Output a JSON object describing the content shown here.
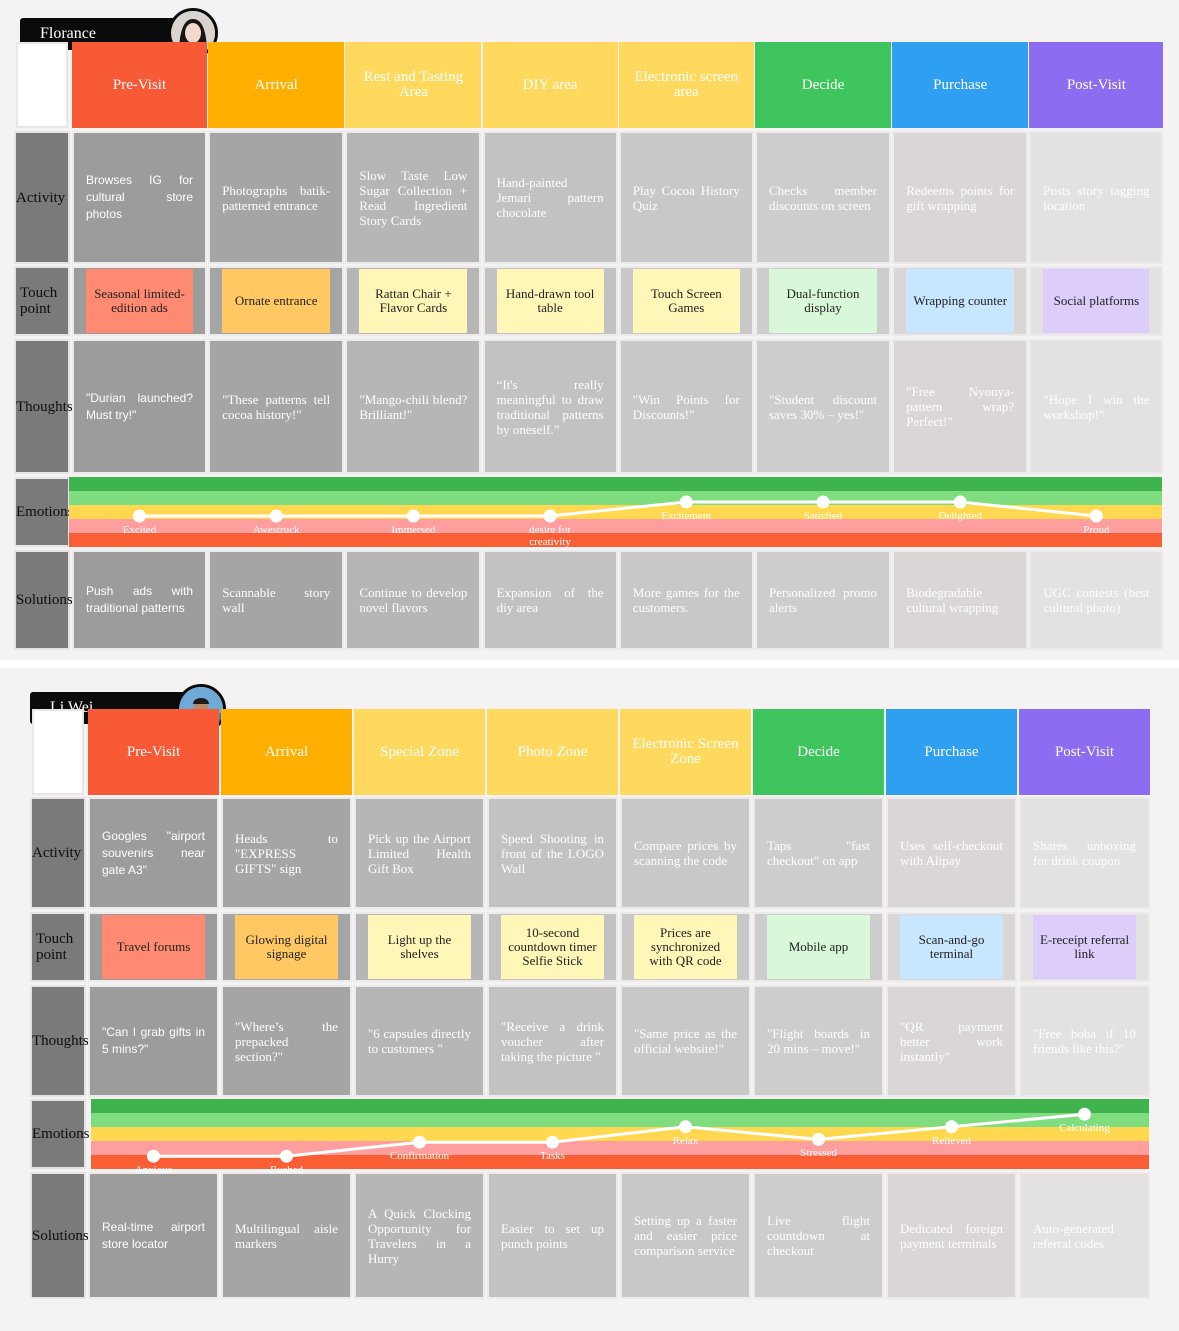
{
  "colors": {
    "pre_visit": "#f85a35",
    "arrival": "#ffaf00",
    "zone": "#ffd95e",
    "decide": "#3ec55d",
    "purchase": "#2f9ff2",
    "post_visit": "#8c6cf0",
    "grey_cells": [
      "#979797",
      "#a3a3a3",
      "#b4b4b4",
      "#c4c4c4",
      "#c9c9c9",
      "#cecece",
      "#dbd7d7",
      "#e4e2e2"
    ],
    "emotion_bands": [
      "#3fb44e",
      "#7fdd7f",
      "#ffd84f",
      "#ff9e9e",
      "#f95e35"
    ]
  },
  "journeys": [
    {
      "persona": "Florance",
      "row_labels": [
        "Activity",
        "Touch point",
        "Thoughts",
        "Emotions",
        "Solutions"
      ],
      "phases": [
        "Pre-Visit",
        "Arrival",
        "Rest and Tasting Area",
        "DIY area",
        "Electronic screen area",
        "Decide",
        "Purchase",
        "Post-Visit"
      ],
      "activities": [
        "Browses IG for cultural store photos",
        "Photographs batik-patterned entrance",
        "Slow Taste Low Sugar Collection + Read Ingredient Story Cards",
        "Hand-painted Jemari pattern chocolate",
        "Play Cocoa History Quiz",
        "Checks member discounts on screen",
        "Redeems points for gift wrapping",
        "Posts story tagging location"
      ],
      "touchpoints": [
        "Seasonal limited-edition ads",
        "Ornate entrance",
        "Rattan Chair + Flavor Cards",
        "Hand-drawn tool table",
        "Touch Screen Games",
        "Dual-function display",
        "Wrapping counter",
        "Social platforms"
      ],
      "thoughts": [
        "\"Durian launched? Must try!\"",
        "\"These patterns tell cocoa history!\"",
        "\"Mango-chili blend? Brilliant!\"",
        "“It's really meaningful to draw traditional patterns by oneself.”",
        "\"Win Points for Discounts!\"",
        "\"Student discount saves 30% – yes!\"",
        "\"Free Nyonya-pattern wrap? Perfect!\"",
        "\"Hope I win the workshop!\""
      ],
      "emotions": [
        {
          "label": "Excited",
          "level": 2
        },
        {
          "label": "Awestruck",
          "level": 2
        },
        {
          "label": "Immersed",
          "level": 2
        },
        {
          "label": "desire for creativity",
          "level": 2
        },
        {
          "label": "Excitement",
          "level": 3
        },
        {
          "label": "Satisfied",
          "level": 3
        },
        {
          "label": "Delighted",
          "level": 3
        },
        {
          "label": "Proud",
          "level": 2
        }
      ],
      "solutions": [
        "Push ads with traditional patterns",
        "Scannable story wall",
        "Continue to develop novel flavors",
        "Expansion of the diy area",
        "More games for the customers.",
        "Personalized promo alerts",
        "Biodegradable cultural wrapping",
        "UGC contests (best cultural photo)"
      ]
    },
    {
      "persona": "Li Wei",
      "row_labels": [
        "Activity",
        "Touch point",
        "Thoughts",
        "Emotions",
        "Solutions"
      ],
      "phases": [
        "Pre-Visit",
        "Arrival",
        "Special Zone",
        "Photo Zone",
        "Electronic Screen Zone",
        "Decide",
        "Purchase",
        "Post-Visit"
      ],
      "activities": [
        "Googles \"airport souvenirs near gate A3\"",
        "Heads to \"EXPRESS GIFTS\" sign",
        "Pick up the Airport Limited Health Gift Box",
        "Speed Shooting in front of the LOGO Wall",
        "Compare prices by scanning the code",
        "Taps \"fast checkout\" on app",
        "Uses self-checkout with Alipay",
        "Shares unboxing for drink coupon"
      ],
      "touchpoints": [
        "Travel forums",
        "Glowing digital signage",
        "Light up the shelves",
        "10-second countdown timer Selfie Stick",
        "Prices are synchronized with QR code",
        "Mobile app",
        "Scan-and-go terminal",
        "E-receipt referral link"
      ],
      "thoughts": [
        "\"Can I grab gifts in 5 mins?\"",
        "\"Where’s the prepacked section?\"",
        "\"6 capsules directly to customers \"",
        "\"Receive a drink voucher after taking the picture \"",
        "\"Same price as the official website!\"",
        "\"Flight boards in 20 mins – move!\"",
        "\"QR payment better work instantly\"",
        "\"Free boba if 10 friends like this?\""
      ],
      "emotions": [
        {
          "label": "Anxious",
          "level": 0.7
        },
        {
          "label": "Rushed",
          "level": 0.7
        },
        {
          "label": "Confirmation",
          "level": 1.7
        },
        {
          "label": "Tasks",
          "level": 1.7
        },
        {
          "label": "Relax",
          "level": 2.8
        },
        {
          "label": "Stressed",
          "level": 1.9
        },
        {
          "label": "Relieved",
          "level": 2.8
        },
        {
          "label": "Calculating",
          "level": 3.7
        }
      ],
      "solutions": [
        "Real-time airport store locator",
        "Multilingual aisle markers",
        "A Quick Clocking Opportunity for Travelers in a Hurry",
        "Easier to set up punch points",
        "Setting up a faster and easier price comparison service",
        "Live flight countdown at checkout",
        "Dedicated foreign payment terminals",
        "Auto-generated referral codes"
      ]
    }
  ]
}
